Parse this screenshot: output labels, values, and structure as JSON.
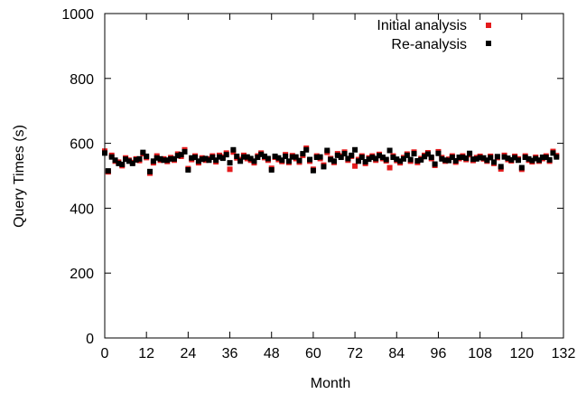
{
  "chart_data": {
    "type": "scatter",
    "title": "",
    "xlabel": "Month",
    "ylabel": "Query Times (s)",
    "xlim": [
      0,
      132
    ],
    "ylim": [
      0,
      1000
    ],
    "xticks": [
      0,
      12,
      24,
      36,
      48,
      60,
      72,
      84,
      96,
      108,
      120,
      132
    ],
    "yticks": [
      0,
      200,
      400,
      600,
      800,
      1000
    ],
    "grid": false,
    "legend_position": "top-right",
    "colors": {
      "initial": "#e41a1c",
      "reanalysis": "#000000"
    },
    "series": [
      {
        "name": "Initial analysis",
        "x": [
          0,
          1,
          2,
          3,
          4,
          5,
          6,
          7,
          8,
          9,
          10,
          11,
          12,
          13,
          14,
          15,
          16,
          17,
          18,
          19,
          20,
          21,
          22,
          23,
          24,
          25,
          26,
          27,
          28,
          29,
          30,
          31,
          32,
          33,
          34,
          35,
          36,
          37,
          38,
          39,
          40,
          41,
          42,
          43,
          44,
          45,
          46,
          47,
          48,
          49,
          50,
          51,
          52,
          53,
          54,
          55,
          56,
          57,
          58,
          59,
          60,
          61,
          62,
          63,
          64,
          65,
          66,
          67,
          68,
          69,
          70,
          71,
          72,
          73,
          74,
          75,
          76,
          77,
          78,
          79,
          80,
          81,
          82,
          83,
          84,
          85,
          86,
          87,
          88,
          89,
          90,
          91,
          92,
          93,
          94,
          95,
          96,
          97,
          98,
          99,
          100,
          101,
          102,
          103,
          104,
          105,
          106,
          107,
          108,
          109,
          110,
          111,
          112,
          113,
          114,
          115,
          116,
          117,
          118,
          119,
          120,
          121,
          122,
          123,
          124,
          125,
          126,
          127,
          128,
          129,
          130
        ],
        "values": [
          576,
          512,
          563,
          545,
          542,
          531,
          555,
          548,
          541,
          552,
          547,
          568,
          556,
          508,
          540,
          561,
          548,
          552,
          544,
          556,
          548,
          567,
          560,
          580,
          522,
          550,
          561,
          540,
          555,
          548,
          552,
          561,
          543,
          563,
          558,
          570,
          520,
          573,
          555,
          550,
          563,
          553,
          548,
          540,
          561,
          570,
          556,
          548,
          523,
          557,
          550,
          544,
          565,
          541,
          562,
          553,
          542,
          563,
          585,
          545,
          520,
          561,
          553,
          533,
          572,
          553,
          541,
          568,
          561,
          573,
          548,
          560,
          530,
          550,
          561,
          538,
          555,
          561,
          548,
          566,
          553,
          546,
          525,
          561,
          547,
          540,
          556,
          567,
          545,
          573,
          541,
          553,
          563,
          571,
          553,
          532,
          574,
          556,
          545,
          551,
          561,
          542,
          553,
          561,
          550,
          565,
          547,
          556,
          560,
          552,
          545,
          560,
          538,
          556,
          521,
          563,
          550,
          546,
          560,
          552,
          520,
          561,
          548,
          543,
          557,
          545,
          553,
          561,
          545,
          575,
          562
        ]
      },
      {
        "name": "Re-analysis",
        "x": [
          0,
          1,
          2,
          3,
          4,
          5,
          6,
          7,
          8,
          9,
          10,
          11,
          12,
          13,
          14,
          15,
          16,
          17,
          18,
          19,
          20,
          21,
          22,
          23,
          24,
          25,
          26,
          27,
          28,
          29,
          30,
          31,
          32,
          33,
          34,
          35,
          36,
          37,
          38,
          39,
          40,
          41,
          42,
          43,
          44,
          45,
          46,
          47,
          48,
          49,
          50,
          51,
          52,
          53,
          54,
          55,
          56,
          57,
          58,
          59,
          60,
          61,
          62,
          63,
          64,
          65,
          66,
          67,
          68,
          69,
          70,
          71,
          72,
          73,
          74,
          75,
          76,
          77,
          78,
          79,
          80,
          81,
          82,
          83,
          84,
          85,
          86,
          87,
          88,
          89,
          90,
          91,
          92,
          93,
          94,
          95,
          96,
          97,
          98,
          99,
          100,
          101,
          102,
          103,
          104,
          105,
          106,
          107,
          108,
          109,
          110,
          111,
          112,
          113,
          114,
          115,
          116,
          117,
          118,
          119,
          120,
          121,
          122,
          123,
          124,
          125,
          126,
          127,
          128,
          129,
          130
        ],
        "values": [
          570,
          515,
          558,
          548,
          538,
          535,
          551,
          545,
          538,
          549,
          552,
          572,
          560,
          513,
          545,
          555,
          552,
          548,
          548,
          552,
          552,
          562,
          565,
          574,
          518,
          555,
          557,
          545,
          551,
          553,
          548,
          557,
          548,
          558,
          554,
          565,
          540,
          580,
          560,
          545,
          558,
          558,
          553,
          545,
          557,
          566,
          560,
          553,
          518,
          560,
          555,
          548,
          560,
          545,
          558,
          558,
          547,
          568,
          580,
          550,
          516,
          557,
          558,
          528,
          578,
          550,
          545,
          563,
          557,
          568,
          553,
          563,
          580,
          545,
          557,
          543,
          551,
          557,
          553,
          562,
          557,
          550,
          578,
          557,
          551,
          545,
          552,
          563,
          550,
          568,
          546,
          549,
          559,
          567,
          557,
          536,
          569,
          552,
          548,
          547,
          557,
          546,
          557,
          557,
          554,
          569,
          551,
          552,
          556,
          555,
          548,
          556,
          542,
          559,
          528,
          558,
          554,
          549,
          556,
          548,
          525,
          557,
          552,
          547,
          553,
          548,
          557,
          557,
          549,
          570,
          558
        ]
      }
    ]
  }
}
